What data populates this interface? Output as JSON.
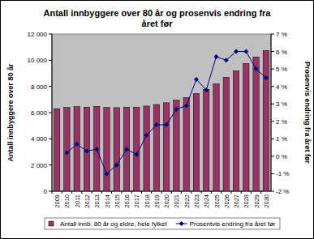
{
  "chart_data": {
    "type": "bar",
    "title": "Antall innbyggere over 80 år og prosenvis endring fra året før",
    "y_label": "Antall innbyggere over 80 år",
    "y2_label": "Prosenvis endring fra året før",
    "categories": [
      "2009",
      "2010",
      "2011",
      "2012",
      "2013",
      "2014",
      "2015",
      "2016",
      "2017",
      "2018",
      "2019",
      "2020",
      "2021",
      "2022",
      "2023",
      "2024",
      "2025",
      "2026",
      "2027",
      "2028",
      "2029",
      "2030"
    ],
    "series": [
      {
        "name": "Antall innb. 80 år og eldre, hele fylket",
        "type": "bar",
        "color": "#993366",
        "values": [
          6300,
          6400,
          6450,
          6420,
          6480,
          6400,
          6380,
          6420,
          6420,
          6500,
          6620,
          6750,
          6950,
          7150,
          7450,
          7750,
          8200,
          8700,
          9200,
          9750,
          10250,
          10750
        ]
      },
      {
        "name": "Prosentvis endring fra året før",
        "type": "line",
        "axis": "y2",
        "color": "#000080",
        "marker": "diamond",
        "values": [
          null,
          0.2,
          0.7,
          0.3,
          0.4,
          -1.0,
          -0.5,
          0.4,
          0.1,
          1.2,
          1.8,
          1.8,
          2.7,
          2.9,
          4.4,
          3.8,
          5.7,
          5.5,
          6.0,
          6.0,
          5.0,
          4.5
        ]
      }
    ],
    "ylim": [
      0,
      12000
    ],
    "yticks": [
      0,
      {
        "value": 2000,
        "label": "2 000"
      },
      {
        "value": 4000,
        "label": "4 000"
      },
      {
        "value": 6000,
        "label": "6 000"
      },
      {
        "value": 8000,
        "label": "8 000"
      },
      {
        "value": 10000,
        "label": "10 000"
      },
      {
        "value": 12000,
        "label": "12 000"
      }
    ],
    "y2lim": [
      -2,
      7
    ],
    "y2ticks": [
      {
        "value": -2,
        "label": "-2 %"
      },
      {
        "value": -1,
        "label": "-1 %"
      },
      {
        "value": 0,
        "label": "0 %"
      },
      {
        "value": 1,
        "label": "1 %"
      },
      {
        "value": 2,
        "label": "2 %"
      },
      {
        "value": 3,
        "label": "3 %"
      },
      {
        "value": 4,
        "label": "4 %"
      },
      {
        "value": 5,
        "label": "5 %"
      },
      {
        "value": 6,
        "label": "6 %"
      },
      {
        "value": 7,
        "label": "7 %"
      }
    ],
    "grid": false,
    "legend": "bottom"
  }
}
